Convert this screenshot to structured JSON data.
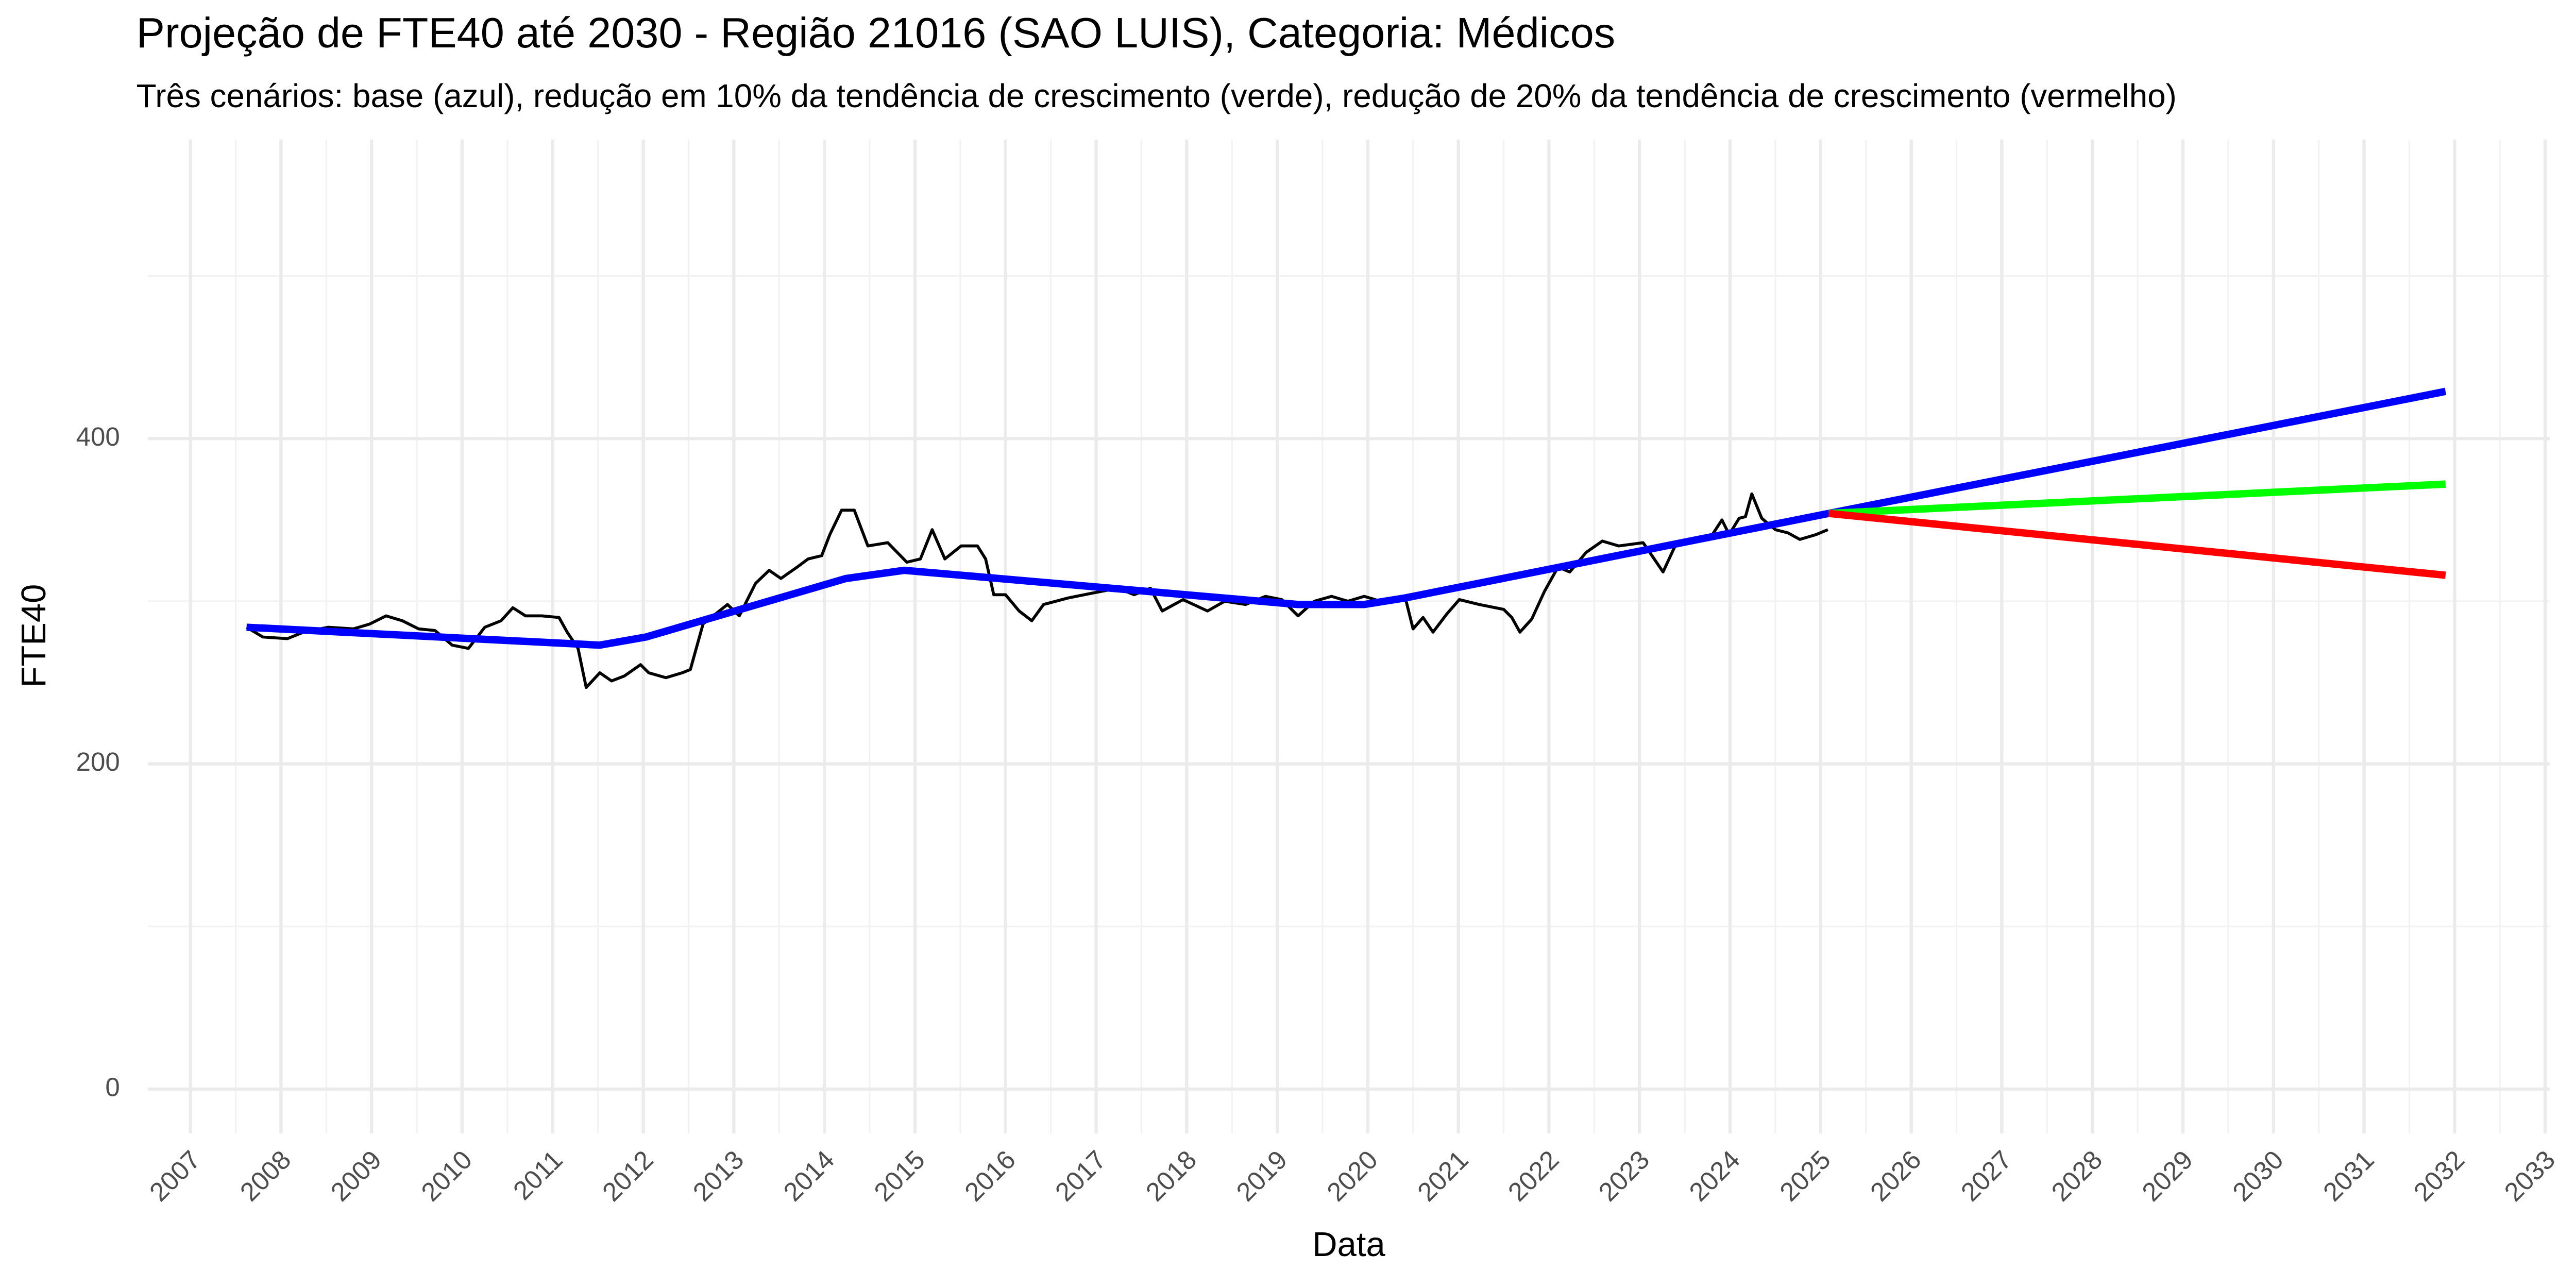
{
  "chart_data": {
    "type": "line",
    "title": "Projeção de FTE40 até 2030 - Região 21016 (SAO LUIS), Categoria: Médicos",
    "subtitle": "Três cenários: base (azul), redução em 10% da tendência de crescimento (verde), redução de 20% da tendência de crescimento (vermelho)",
    "x_label": "Data",
    "y_label": "FTE40",
    "xlim": [
      2006.53,
      2033.05
    ],
    "ylim": [
      -27.3,
      583.8
    ],
    "xticks": [
      2007,
      2008,
      2009,
      2010,
      2011,
      2012,
      2013,
      2014,
      2015,
      2016,
      2017,
      2018,
      2019,
      2020,
      2021,
      2022,
      2023,
      2024,
      2025,
      2026,
      2027,
      2028,
      2029,
      2030,
      2031,
      2032,
      2033
    ],
    "yticks": [
      0,
      200,
      400
    ],
    "grid": true,
    "series": [
      {
        "color": "#000000",
        "width": 1.8,
        "x": [
          2007.62,
          2007.8,
          2008.07,
          2008.25,
          2008.52,
          2008.8,
          2008.98,
          2009.16,
          2009.34,
          2009.52,
          2009.7,
          2009.89,
          2010.07,
          2010.25,
          2010.43,
          2010.56,
          2010.7,
          2010.88,
          2011.07,
          2011.16,
          2011.28,
          2011.37,
          2011.52,
          2011.65,
          2011.79,
          2011.97,
          2012.06,
          2012.25,
          2012.43,
          2012.52,
          2012.66,
          2012.93,
          2013.06,
          2013.24,
          2013.39,
          2013.52,
          2013.7,
          2013.82,
          2013.97,
          2014.06,
          2014.19,
          2014.33,
          2014.48,
          2014.7,
          2014.91,
          2015.06,
          2015.19,
          2015.33,
          2015.51,
          2015.69,
          2015.78,
          2015.87,
          2016.0,
          2016.15,
          2016.29,
          2016.42,
          2016.69,
          2016.96,
          2017.24,
          2017.42,
          2017.6,
          2017.73,
          2017.96,
          2018.23,
          2018.42,
          2018.65,
          2018.87,
          2019.05,
          2019.23,
          2019.41,
          2019.6,
          2019.78,
          2019.96,
          2020.14,
          2020.41,
          2020.5,
          2020.61,
          2020.72,
          2020.87,
          2021.01,
          2021.23,
          2021.5,
          2021.59,
          2021.68,
          2021.81,
          2021.95,
          2022.1,
          2022.23,
          2022.41,
          2022.59,
          2022.77,
          2023.04,
          2023.26,
          2023.41,
          2023.59,
          2023.77,
          2023.91,
          2023.99,
          2024.1,
          2024.17,
          2024.24,
          2024.35,
          2024.5,
          2024.64,
          2024.77,
          2024.95,
          2025.08
        ],
        "values": [
          284,
          278,
          277,
          281,
          284,
          283,
          286,
          291,
          288,
          283,
          282,
          273,
          271,
          284,
          288,
          296,
          291,
          291,
          290,
          281,
          271,
          247,
          256,
          251,
          254,
          261,
          256,
          253,
          256,
          258,
          286,
          298,
          291,
          311,
          319,
          314,
          321,
          326,
          328,
          341,
          356,
          356,
          334,
          336,
          324,
          326,
          344,
          326,
          334,
          334,
          326,
          304,
          304,
          294,
          288,
          298,
          302,
          305,
          308,
          304,
          308,
          294,
          301,
          294,
          300,
          298,
          303,
          301,
          291,
          300,
          303,
          300,
          303,
          300,
          303,
          283,
          290,
          281,
          292,
          301,
          298,
          295,
          290,
          281,
          289,
          306,
          321,
          318,
          330,
          337,
          334,
          336,
          318,
          336,
          338,
          338,
          350,
          341,
          351,
          352,
          366,
          351,
          344,
          342,
          338,
          341,
          344
        ]
      },
      {
        "color": "#0000ff",
        "width": 4.5,
        "x": [
          2007.62,
          2011.52,
          2012.03,
          2014.24,
          2014.88,
          2015.51,
          2019.23,
          2019.96,
          2020.41,
          2025.09,
          2031.9
        ],
        "values": [
          284,
          273,
          278,
          314,
          319,
          316,
          298,
          298,
          302,
          354,
          429
        ]
      },
      {
        "color": "#00ff00",
        "width": 4.5,
        "x": [
          2025.09,
          2031.9
        ],
        "values": [
          354,
          372
        ]
      },
      {
        "color": "#ff0000",
        "width": 4.5,
        "x": [
          2025.09,
          2031.9
        ],
        "values": [
          354,
          316
        ]
      }
    ]
  }
}
